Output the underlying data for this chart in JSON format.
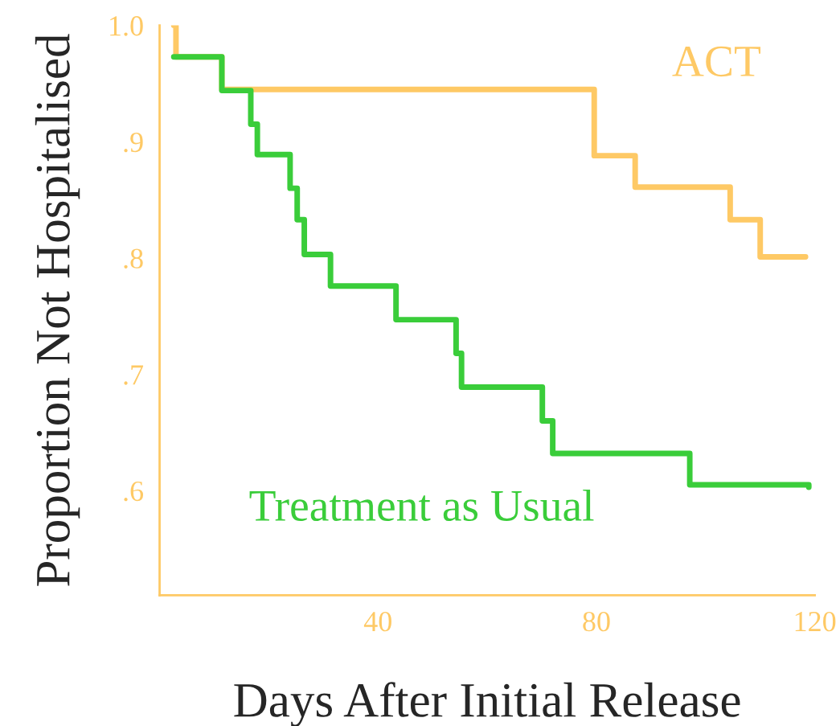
{
  "chart_data": {
    "type": "step",
    "xlabel": "Days After Initial Release",
    "ylabel": "Proportion Not Hospitalised",
    "xlim": [
      0,
      120
    ],
    "xticks": [
      40,
      80,
      120
    ],
    "ylim": [
      0.51,
      1.0
    ],
    "yticks": [
      {
        "value": 0.6,
        "label": ".6"
      },
      {
        "value": 0.7,
        "label": ".7"
      },
      {
        "value": 0.8,
        "label": ".8"
      },
      {
        "value": 0.9,
        "label": ".9"
      },
      {
        "value": 1.0,
        "label": "1.0"
      }
    ],
    "grid": false,
    "legend": false,
    "series": [
      {
        "name": "ACT",
        "color": "#fec965",
        "x": [
          2.6,
          3,
          11.4,
          79.6,
          87.1,
          104.5,
          110,
          118.3
        ],
        "values": [
          1.0,
          0.973,
          0.945,
          0.888,
          0.861,
          0.833,
          0.801,
          0.801
        ]
      },
      {
        "name": "Treatment as Usual",
        "color": "#3acd3a",
        "x": [
          2.6,
          11.4,
          16.7,
          17.9,
          23.9,
          25.2,
          26.5,
          31.3,
          43.3,
          54.3,
          55.3,
          70.1,
          72,
          97.1,
          118.9
        ],
        "values": [
          0.973,
          0.944,
          0.915,
          0.889,
          0.86,
          0.833,
          0.803,
          0.776,
          0.747,
          0.718,
          0.689,
          0.66,
          0.632,
          0.605,
          0.603
        ]
      }
    ]
  }
}
